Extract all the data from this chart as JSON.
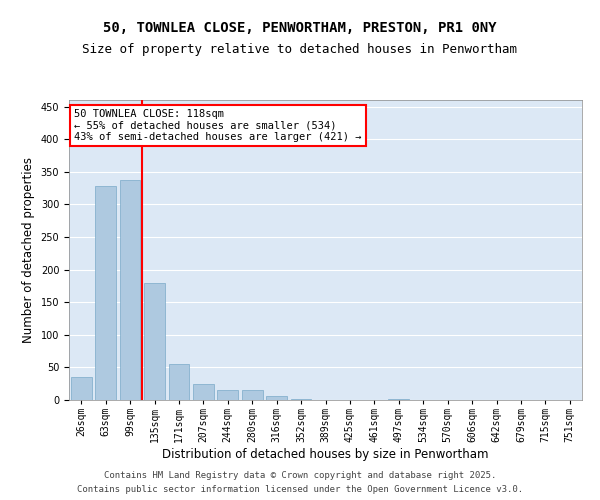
{
  "title_line1": "50, TOWNLEA CLOSE, PENWORTHAM, PRESTON, PR1 0NY",
  "title_line2": "Size of property relative to detached houses in Penwortham",
  "xlabel": "Distribution of detached houses by size in Penwortham",
  "ylabel": "Number of detached properties",
  "bar_color": "#aec9e0",
  "bar_edge_color": "#7aaac8",
  "background_color": "#dce8f5",
  "categories": [
    "26sqm",
    "63sqm",
    "99sqm",
    "135sqm",
    "171sqm",
    "207sqm",
    "244sqm",
    "280sqm",
    "316sqm",
    "352sqm",
    "389sqm",
    "425sqm",
    "461sqm",
    "497sqm",
    "534sqm",
    "570sqm",
    "606sqm",
    "642sqm",
    "679sqm",
    "715sqm",
    "751sqm"
  ],
  "values": [
    35,
    328,
    338,
    180,
    55,
    25,
    15,
    15,
    6,
    2,
    0,
    0,
    0,
    2,
    0,
    0,
    0,
    0,
    0,
    0,
    0
  ],
  "red_line_index": 2,
  "annotation_text": "50 TOWNLEA CLOSE: 118sqm\n← 55% of detached houses are smaller (534)\n43% of semi-detached houses are larger (421) →",
  "annotation_box_color": "white",
  "annotation_box_edge": "red",
  "ylim": [
    0,
    460
  ],
  "yticks": [
    0,
    50,
    100,
    150,
    200,
    250,
    300,
    350,
    400,
    450
  ],
  "footer_line1": "Contains HM Land Registry data © Crown copyright and database right 2025.",
  "footer_line2": "Contains public sector information licensed under the Open Government Licence v3.0.",
  "title_fontsize": 10,
  "subtitle_fontsize": 9,
  "axis_label_fontsize": 8.5,
  "tick_fontsize": 7,
  "footer_fontsize": 6.5,
  "annot_fontsize": 7.5
}
